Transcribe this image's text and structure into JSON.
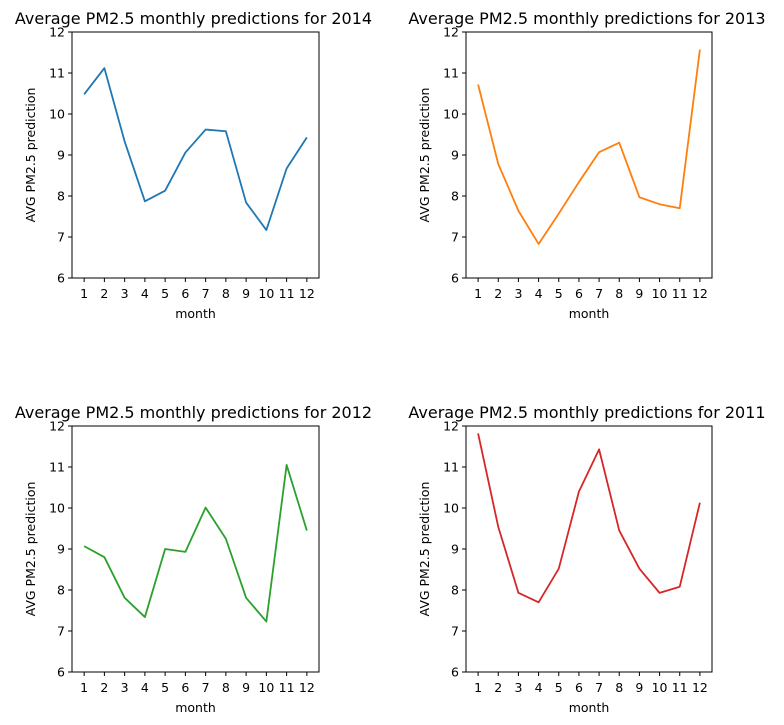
{
  "chart_data": [
    {
      "type": "line",
      "title": "Average PM2.5 monthly predictions for 2014",
      "xlabel": "month",
      "ylabel": "AVG PM2.5 prediction",
      "x": [
        1,
        2,
        3,
        4,
        5,
        6,
        7,
        8,
        9,
        10,
        11,
        12
      ],
      "values": [
        10.48,
        11.12,
        9.33,
        7.87,
        8.13,
        9.06,
        9.62,
        9.58,
        7.84,
        7.17,
        8.67,
        9.43
      ],
      "color": "#1f77b4",
      "xlim": [
        0.4,
        12.6
      ],
      "ylim": [
        6,
        12
      ],
      "yticks": [
        6,
        7,
        8,
        9,
        10,
        11,
        12
      ],
      "xticks": [
        1,
        2,
        3,
        4,
        5,
        6,
        7,
        8,
        9,
        10,
        11,
        12
      ],
      "grid": false,
      "legend": false
    },
    {
      "type": "line",
      "title": "Average PM2.5 monthly predictions for 2013",
      "xlabel": "month",
      "ylabel": "AVG PM2.5 prediction",
      "x": [
        1,
        2,
        3,
        4,
        5,
        6,
        7,
        8,
        9,
        10,
        11,
        12
      ],
      "values": [
        10.72,
        8.78,
        7.64,
        6.83,
        7.57,
        8.34,
        9.07,
        9.3,
        7.97,
        7.8,
        7.7,
        11.57
      ],
      "color": "#ff7f0e",
      "xlim": [
        0.4,
        12.6
      ],
      "ylim": [
        6,
        12
      ],
      "yticks": [
        6,
        7,
        8,
        9,
        10,
        11,
        12
      ],
      "xticks": [
        1,
        2,
        3,
        4,
        5,
        6,
        7,
        8,
        9,
        10,
        11,
        12
      ],
      "grid": false,
      "legend": false
    },
    {
      "type": "line",
      "title": "Average PM2.5 monthly predictions for 2012",
      "xlabel": "month",
      "ylabel": "AVG PM2.5 prediction",
      "x": [
        1,
        2,
        3,
        4,
        5,
        6,
        7,
        8,
        9,
        10,
        11,
        12
      ],
      "values": [
        9.07,
        8.8,
        7.81,
        7.34,
        9.0,
        8.93,
        10.01,
        9.25,
        7.81,
        7.23,
        11.05,
        9.45
      ],
      "color": "#2ca02c",
      "xlim": [
        0.4,
        12.6
      ],
      "ylim": [
        6,
        12
      ],
      "yticks": [
        6,
        7,
        8,
        9,
        10,
        11,
        12
      ],
      "xticks": [
        1,
        2,
        3,
        4,
        5,
        6,
        7,
        8,
        9,
        10,
        11,
        12
      ],
      "grid": false,
      "legend": false
    },
    {
      "type": "line",
      "title": "Average PM2.5 monthly predictions for 2011",
      "xlabel": "month",
      "ylabel": "AVG PM2.5 prediction",
      "x": [
        1,
        2,
        3,
        4,
        5,
        6,
        7,
        8,
        9,
        10,
        11,
        12
      ],
      "values": [
        11.82,
        9.54,
        7.93,
        7.7,
        8.52,
        10.4,
        11.43,
        9.45,
        8.52,
        7.93,
        8.08,
        10.13
      ],
      "color": "#d62728",
      "xlim": [
        0.4,
        12.6
      ],
      "ylim": [
        6,
        12
      ],
      "yticks": [
        6,
        7,
        8,
        9,
        10,
        11,
        12
      ],
      "xticks": [
        1,
        2,
        3,
        4,
        5,
        6,
        7,
        8,
        9,
        10,
        11,
        12
      ],
      "grid": false,
      "legend": false
    }
  ]
}
